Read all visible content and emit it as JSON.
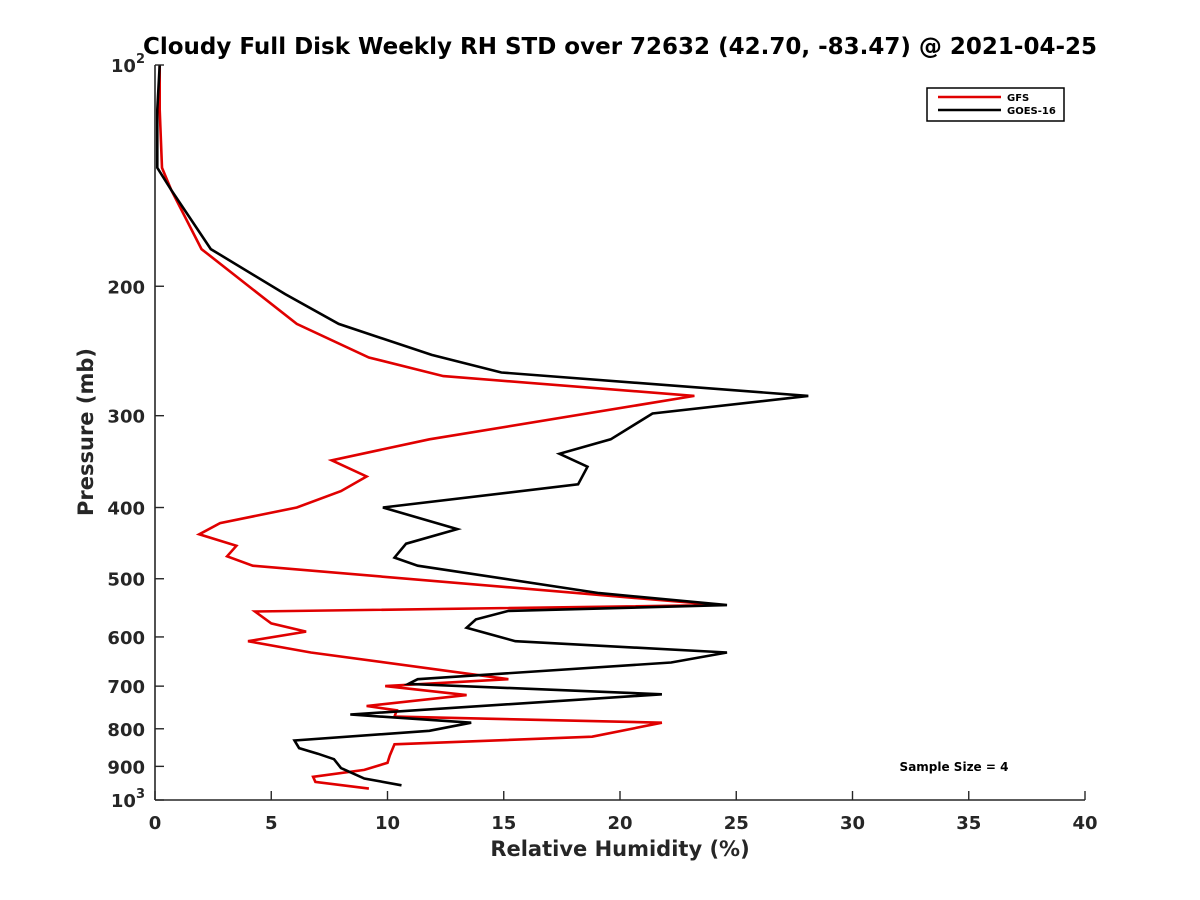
{
  "chart_data": {
    "type": "line",
    "title": "Cloudy Full Disk Weekly RH STD over 72632 (42.70, -83.47) @ 2021-04-25",
    "xlabel": "Relative Humidity (%)",
    "ylabel": "Pressure (mb)",
    "xlim": [
      0,
      40
    ],
    "ylim": [
      100,
      1000
    ],
    "yscale": "log",
    "y_reversed": true,
    "grid": false,
    "legend_position": "top-right",
    "x_ticks": [
      0,
      5,
      10,
      15,
      20,
      25,
      30,
      35,
      40
    ],
    "x_tick_labels": [
      "0",
      "5",
      "10",
      "15",
      "20",
      "25",
      "30",
      "35",
      "40"
    ],
    "y_ticks": [
      100,
      200,
      300,
      400,
      500,
      600,
      700,
      800,
      900,
      1000
    ],
    "y_tick_labels": [
      {
        "base": "10",
        "exp": "2"
      },
      {
        "base": "200",
        "exp": ""
      },
      {
        "base": "300",
        "exp": ""
      },
      {
        "base": "400",
        "exp": ""
      },
      {
        "base": "500",
        "exp": ""
      },
      {
        "base": "600",
        "exp": ""
      },
      {
        "base": "700",
        "exp": ""
      },
      {
        "base": "800",
        "exp": ""
      },
      {
        "base": "900",
        "exp": ""
      },
      {
        "base": "10",
        "exp": "3"
      }
    ],
    "annotation": "Sample Size = 4",
    "series": [
      {
        "name": "GFS",
        "color": "#e00000",
        "x": [
          0.2,
          0.2,
          0.3,
          0.7,
          2.0,
          6.1,
          9.2,
          12.4,
          23.2,
          11.8,
          7.6,
          9.1,
          8.0,
          6.1,
          2.8,
          1.9,
          3.5,
          3.1,
          4.2,
          24.3,
          4.3,
          5.0,
          6.5,
          4.0,
          6.7,
          15.2,
          9.9,
          13.4,
          9.1,
          10.4,
          10.3,
          21.8,
          18.8,
          10.3,
          10.1,
          10.0,
          9.0,
          6.8,
          6.9,
          9.2
        ],
        "y": [
          100,
          115,
          138,
          148,
          178,
          225,
          250,
          265,
          282,
          323,
          345,
          363,
          380,
          400,
          420,
          435,
          451,
          466,
          480,
          543,
          554,
          575,
          590,
          608,
          630,
          685,
          700,
          720,
          745,
          755,
          770,
          785,
          820,
          840,
          870,
          890,
          910,
          930,
          945,
          965
        ]
      },
      {
        "name": "GOES-16",
        "color": "#000000",
        "x": [
          0.2,
          0.1,
          0.1,
          0.7,
          2.4,
          5.6,
          7.9,
          11.9,
          14.9,
          28.1,
          21.4,
          19.6,
          17.4,
          18.6,
          18.2,
          9.8,
          13.0,
          10.8,
          10.3,
          11.3,
          19.1,
          24.6,
          15.2,
          13.8,
          13.4,
          15.5,
          24.6,
          22.2,
          11.3,
          10.9,
          21.8,
          8.4,
          13.6,
          11.8,
          6.0,
          6.2,
          7.0,
          7.7,
          8.0,
          9.0,
          10.6
        ],
        "y": [
          100,
          115,
          138,
          148,
          178,
          205,
          225,
          248,
          262,
          282,
          298,
          323,
          338,
          352,
          372,
          400,
          428,
          448,
          468,
          480,
          523,
          543,
          553,
          568,
          583,
          608,
          630,
          650,
          685,
          695,
          718,
          765,
          785,
          805,
          830,
          850,
          865,
          880,
          905,
          935,
          955
        ]
      }
    ]
  }
}
